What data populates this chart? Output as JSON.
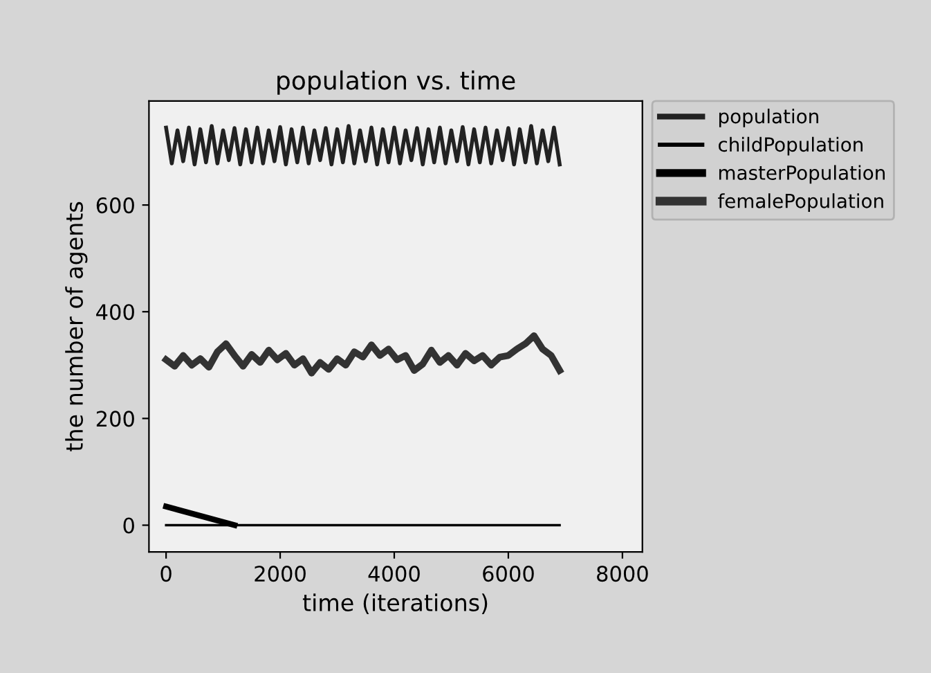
{
  "chart_data": {
    "type": "line",
    "title": "population vs. time",
    "xlabel": "time (iterations)",
    "ylabel": "the number of agents",
    "xlim": [
      -300,
      8350
    ],
    "ylim": [
      -50,
      795
    ],
    "xticks": [
      0,
      2000,
      4000,
      6000,
      8000
    ],
    "yticks": [
      0,
      200,
      400,
      600
    ],
    "grid": false,
    "legend": "right",
    "marker": "none",
    "line_style": "solid",
    "series": [
      {
        "name": "population",
        "color": "#222222",
        "x": [
          0,
          100,
          200,
          300,
          400,
          500,
          600,
          700,
          800,
          900,
          1000,
          1100,
          1200,
          1300,
          1400,
          1500,
          1600,
          1700,
          1800,
          1900,
          2000,
          2100,
          2200,
          2300,
          2400,
          2500,
          2600,
          2700,
          2800,
          2900,
          3000,
          3100,
          3200,
          3300,
          3400,
          3500,
          3600,
          3700,
          3800,
          3900,
          4000,
          4100,
          4200,
          4300,
          4400,
          4500,
          4600,
          4700,
          4800,
          4900,
          5000,
          5100,
          5200,
          5300,
          5400,
          5500,
          5600,
          5700,
          5800,
          5900,
          6000,
          6100,
          6200,
          6300,
          6400,
          6500,
          6600,
          6700,
          6800,
          6900
        ],
        "values": [
          745,
          678,
          740,
          682,
          745,
          676,
          742,
          680,
          748,
          678,
          740,
          684,
          744,
          676,
          742,
          680,
          745,
          678,
          740,
          682,
          746,
          676,
          742,
          680,
          745,
          678,
          740,
          684,
          744,
          676,
          742,
          680,
          748,
          678,
          740,
          682,
          745,
          676,
          742,
          680,
          745,
          678,
          740,
          684,
          744,
          676,
          742,
          680,
          745,
          678,
          740,
          682,
          746,
          676,
          742,
          680,
          745,
          678,
          740,
          684,
          744,
          676,
          742,
          680,
          748,
          678,
          740,
          682,
          745,
          676
        ]
      },
      {
        "name": "childPopulation",
        "color": "#000000",
        "x": [
          0,
          6900
        ],
        "values": [
          0,
          0
        ]
      },
      {
        "name": "masterPopulation",
        "color": "#000000",
        "x": [
          0,
          1200
        ],
        "values": [
          35,
          0
        ]
      },
      {
        "name": "femalePopulation",
        "color": "#333333",
        "x": [
          0,
          150,
          300,
          450,
          600,
          750,
          900,
          1050,
          1200,
          1350,
          1500,
          1650,
          1800,
          1950,
          2100,
          2250,
          2400,
          2550,
          2700,
          2850,
          3000,
          3150,
          3300,
          3450,
          3600,
          3750,
          3900,
          4050,
          4200,
          4350,
          4500,
          4650,
          4800,
          4950,
          5100,
          5250,
          5400,
          5550,
          5700,
          5850,
          6000,
          6150,
          6300,
          6450,
          6600,
          6750,
          6900
        ],
        "values": [
          310,
          298,
          318,
          300,
          312,
          296,
          325,
          340,
          318,
          298,
          320,
          305,
          328,
          310,
          322,
          300,
          312,
          285,
          305,
          292,
          312,
          300,
          325,
          315,
          338,
          318,
          330,
          310,
          318,
          290,
          302,
          328,
          305,
          318,
          300,
          322,
          308,
          318,
          300,
          315,
          318,
          330,
          340,
          355,
          330,
          318,
          290
        ]
      }
    ]
  }
}
